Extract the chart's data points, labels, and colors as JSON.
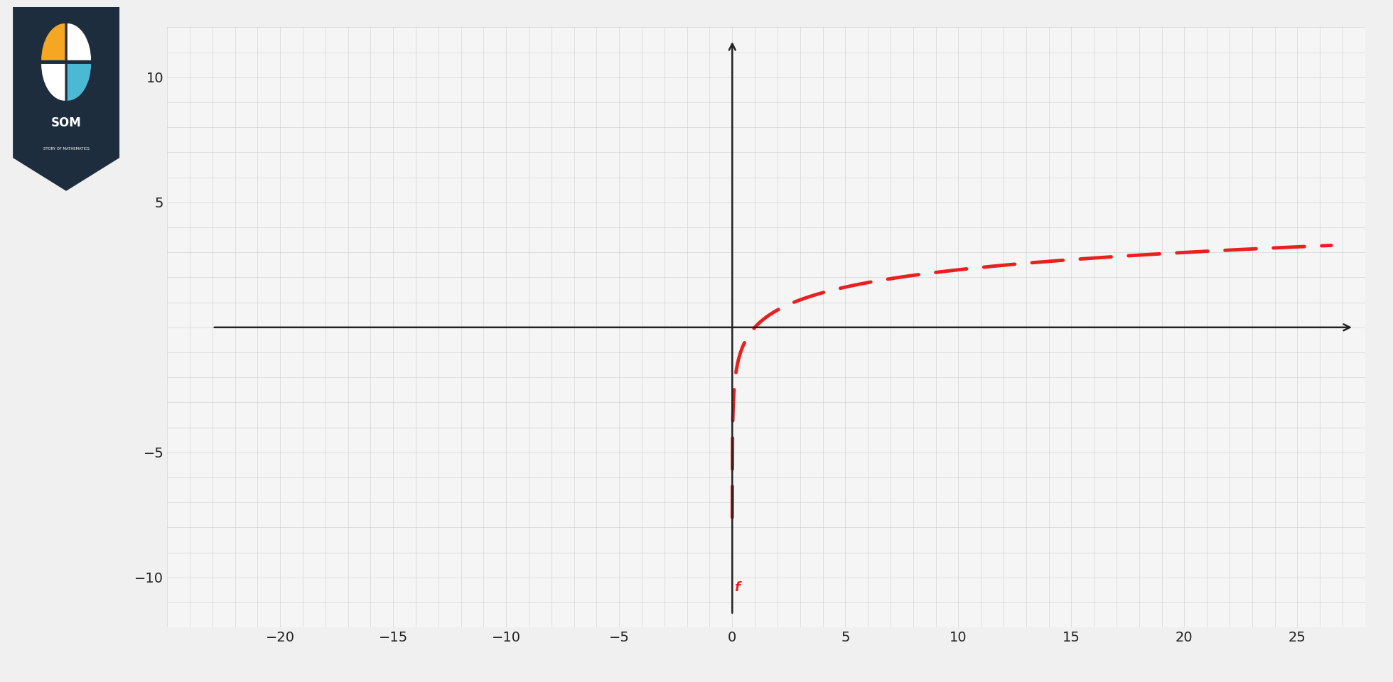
{
  "xlim": [
    -23,
    27.5
  ],
  "ylim": [
    -11.5,
    11.5
  ],
  "xticks": [
    -20,
    -15,
    -10,
    -5,
    0,
    5,
    10,
    15,
    20,
    25
  ],
  "yticks": [
    -10,
    -5,
    5,
    10
  ],
  "curve_color": "#e82020",
  "curve_linewidth": 3.5,
  "background_color": "#f0f0f0",
  "plot_bg_color": "#f5f5f5",
  "grid_color": "#cccccc",
  "axis_color": "#222222",
  "tick_fontsize": 14,
  "label_f": "f",
  "label_f_color": "#e82020",
  "label_f_fontsize": 13,
  "x_start": 0.0005,
  "x_end": 26.5,
  "num_points": 2000,
  "logo_bg_color": "#1e2d3d",
  "logo_orange": "#f5a623",
  "logo_cyan": "#4bb8d4",
  "logo_white": "#ffffff",
  "cyan_bar_color": "#4ab8d4"
}
